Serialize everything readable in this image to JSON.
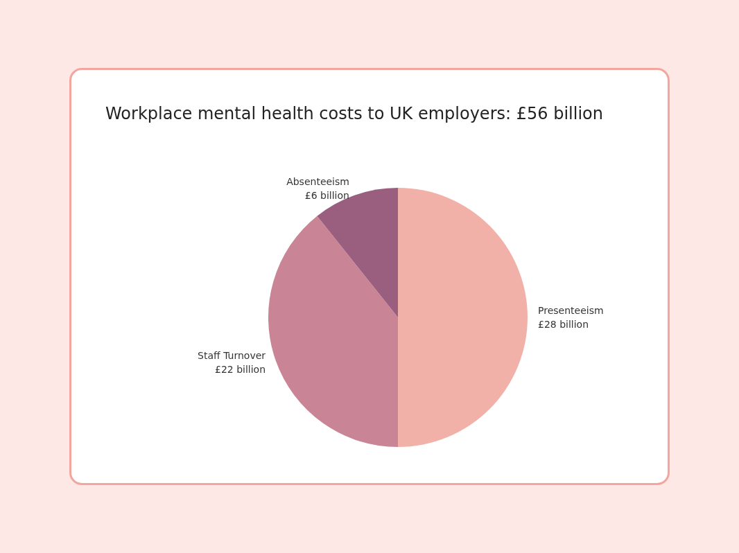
{
  "chart_data": {
    "type": "pie",
    "title": "Workplace mental health costs to UK employers: £56 billion",
    "categories": [
      "Presenteeism",
      "Staff Turnover",
      "Absenteeism"
    ],
    "values": [
      28,
      22,
      6
    ],
    "value_labels": [
      "£28 billion",
      "£22 billion",
      "£6 billion"
    ],
    "colors": [
      "#f2b1a8",
      "#c98496",
      "#9a5e7f"
    ],
    "legend": false
  }
}
